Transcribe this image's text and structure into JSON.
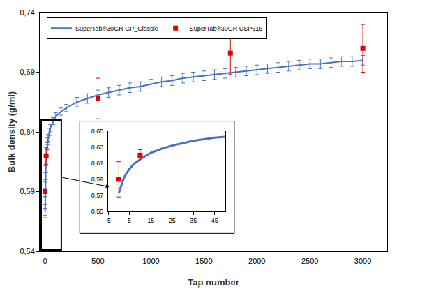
{
  "chart_data": [
    {
      "type": "line",
      "x_label": "Tap number",
      "y_label": "Bulk density (g/ml)",
      "xlim": [
        -50,
        3230
      ],
      "xticks": [
        0,
        500,
        1000,
        1500,
        2000,
        2500,
        3000
      ],
      "ylim": [
        0.54,
        0.74
      ],
      "yticks": [
        {
          "value": 0.54,
          "label": "0,54"
        },
        {
          "value": 0.59,
          "label": "0,59"
        },
        {
          "value": 0.64,
          "label": "0,64"
        },
        {
          "value": 0.69,
          "label": "0,69"
        },
        {
          "value": 0.74,
          "label": "0,74"
        }
      ],
      "grid": false,
      "legend": "upper left",
      "series": [
        {
          "name": "SuperTab®30GR GP_Classic",
          "type": "line",
          "color": "#4472c4",
          "line_style": "solid",
          "x": [
            0,
            1,
            2,
            3,
            5,
            7,
            10,
            15,
            20,
            25,
            30,
            40,
            50,
            75,
            100,
            150,
            200,
            300,
            400,
            500,
            600,
            700,
            800,
            900,
            1000,
            1100,
            1200,
            1300,
            1400,
            1500,
            1600,
            1700,
            1800,
            1900,
            2000,
            2100,
            2200,
            2300,
            2400,
            2500,
            2600,
            2700,
            2800,
            2900,
            3000
          ],
          "values": [
            0.573,
            0.582,
            0.589,
            0.595,
            0.603,
            0.609,
            0.615,
            0.623,
            0.628,
            0.632,
            0.635,
            0.64,
            0.643,
            0.649,
            0.653,
            0.657,
            0.66,
            0.665,
            0.668,
            0.671,
            0.673,
            0.675,
            0.677,
            0.678,
            0.68,
            0.682,
            0.683,
            0.685,
            0.686,
            0.687,
            0.688,
            0.689,
            0.69,
            0.691,
            0.692,
            0.693,
            0.694,
            0.695,
            0.696,
            0.697,
            0.697,
            0.698,
            0.699,
            0.699,
            0.7
          ],
          "errors": [
            0.003,
            0.003,
            0.003,
            0.003,
            0.003,
            0.003,
            0.003,
            0.003,
            0.003,
            0.003,
            0.003,
            0.003,
            0.003,
            0.003,
            0.003,
            0.003,
            0.003,
            0.004,
            0.004,
            0.004,
            0.004,
            0.004,
            0.004,
            0.004,
            0.004,
            0.004,
            0.004,
            0.004,
            0.004,
            0.004,
            0.004,
            0.004,
            0.004,
            0.004,
            0.004,
            0.004,
            0.004,
            0.004,
            0.004,
            0.004,
            0.004,
            0.004,
            0.004,
            0.004,
            0.004
          ]
        },
        {
          "name": "SuperTab®30GR USP616",
          "type": "scatter",
          "color": "#e00000",
          "marker": "square",
          "x": [
            0,
            10,
            500,
            1750,
            3000
          ],
          "values": [
            0.59,
            0.62,
            0.668,
            0.706,
            0.71
          ],
          "errors": [
            0.022,
            0.007,
            0.017,
            0.018,
            0.02
          ]
        }
      ]
    },
    {
      "type": "line",
      "xlim": [
        -5,
        50
      ],
      "xticks": [
        -5,
        5,
        15,
        25,
        35,
        45
      ],
      "ylim": [
        0.55,
        0.65
      ],
      "yticks": [
        {
          "value": 0.55,
          "label": "0,55"
        },
        {
          "value": 0.57,
          "label": "0,57"
        },
        {
          "value": 0.59,
          "label": "0,59"
        },
        {
          "value": 0.61,
          "label": "0,61"
        },
        {
          "value": 0.63,
          "label": "0,63"
        },
        {
          "value": 0.65,
          "label": "0,65"
        }
      ],
      "grid": false,
      "series": [
        {
          "name": "SuperTab®30GR GP_Classic",
          "type": "line",
          "color": "#4472c4",
          "line_style": "solid",
          "x": [
            0,
            1,
            2,
            3,
            5,
            7,
            10,
            15,
            20,
            25,
            30,
            35,
            40,
            45,
            50
          ],
          "values": [
            0.573,
            0.582,
            0.589,
            0.595,
            0.603,
            0.609,
            0.615,
            0.623,
            0.628,
            0.632,
            0.635,
            0.638,
            0.64,
            0.642,
            0.643
          ]
        },
        {
          "name": "SuperTab®30GR USP616",
          "type": "scatter",
          "color": "#e00000",
          "marker": "square",
          "x": [
            0,
            10
          ],
          "values": [
            0.59,
            0.62
          ],
          "errors": [
            0.022,
            0.007
          ]
        }
      ]
    }
  ]
}
